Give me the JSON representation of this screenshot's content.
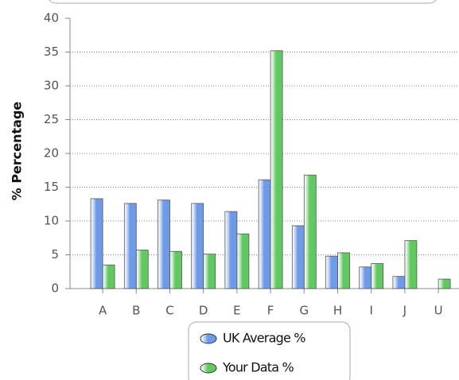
{
  "chart_data": {
    "type": "bar",
    "categories": [
      "A",
      "B",
      "C",
      "D",
      "E",
      "F",
      "G",
      "H",
      "I",
      "J",
      "U"
    ],
    "series": [
      {
        "name": "UK Average %",
        "color": "#6f9ae8",
        "values": [
          13.3,
          12.6,
          13.1,
          12.6,
          11.4,
          16.1,
          9.3,
          4.8,
          3.2,
          1.8,
          0
        ]
      },
      {
        "name": "Your Data %",
        "color": "#62c862",
        "values": [
          3.5,
          5.7,
          5.5,
          5.1,
          8.1,
          35.2,
          16.8,
          5.3,
          3.7,
          7.1,
          1.4
        ]
      }
    ],
    "ylabel": "% Percentage",
    "ylim": [
      0,
      40
    ],
    "yticks": [
      0,
      5,
      10,
      15,
      20,
      25,
      30,
      35,
      40
    ],
    "grid": true
  }
}
